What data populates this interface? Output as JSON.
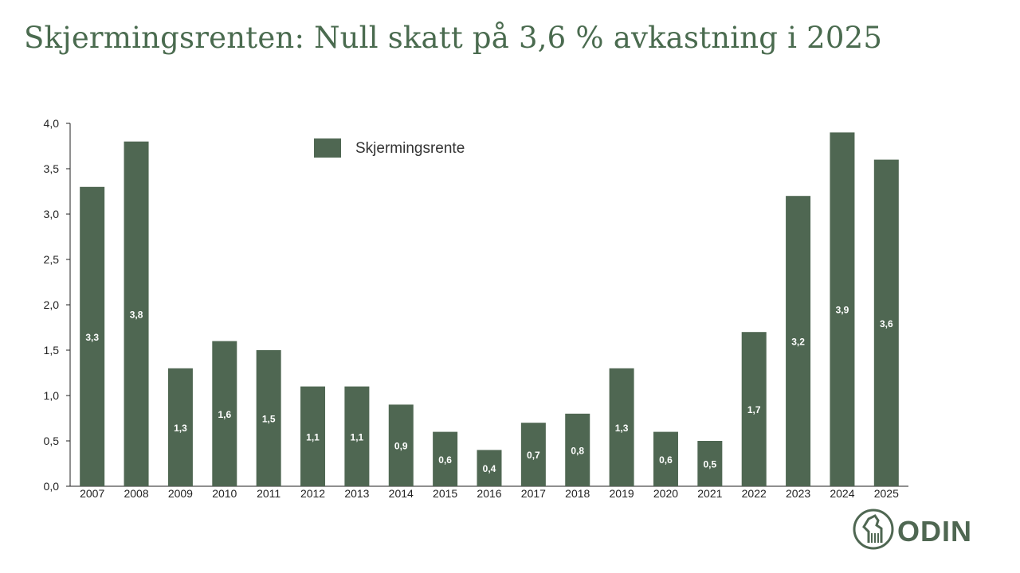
{
  "slide": {
    "title": "Skjermingsrenten: Null skatt på 3,6 % avkastning i 2025"
  },
  "logo": {
    "text": "ODIN",
    "icon": "odin-horse-emblem-icon"
  },
  "colors": {
    "bar": "#4f6752",
    "title": "#4a6b4f",
    "axis": "#222222",
    "label": "#ffffff"
  },
  "chart_data": {
    "type": "bar",
    "title": "",
    "xlabel": "",
    "ylabel": "",
    "categories": [
      "2007",
      "2008",
      "2009",
      "2010",
      "2011",
      "2012",
      "2013",
      "2014",
      "2015",
      "2016",
      "2017",
      "2018",
      "2019",
      "2020",
      "2021",
      "2022",
      "2023",
      "2024",
      "2025"
    ],
    "series": [
      {
        "name": "Skjermingsrente",
        "values": [
          3.3,
          3.8,
          1.3,
          1.6,
          1.5,
          1.1,
          1.1,
          0.9,
          0.6,
          0.4,
          0.7,
          0.8,
          1.3,
          0.6,
          0.5,
          1.7,
          3.2,
          3.9,
          3.6
        ],
        "labels": [
          "3,3",
          "3,8",
          "1,3",
          "1,6",
          "1,5",
          "1,1",
          "1,1",
          "0,9",
          "0,6",
          "0,4",
          "0,7",
          "0,8",
          "1,3",
          "0,6",
          "0,5",
          "1,7",
          "3,2",
          "3,9",
          "3,6"
        ]
      }
    ],
    "ylim": [
      0,
      4
    ],
    "yticks": [
      "0,0",
      "0,5",
      "1,0",
      "1,5",
      "2,0",
      "2,5",
      "3,0",
      "3,5",
      "4,0"
    ],
    "grid": false,
    "legend": "top-center"
  }
}
